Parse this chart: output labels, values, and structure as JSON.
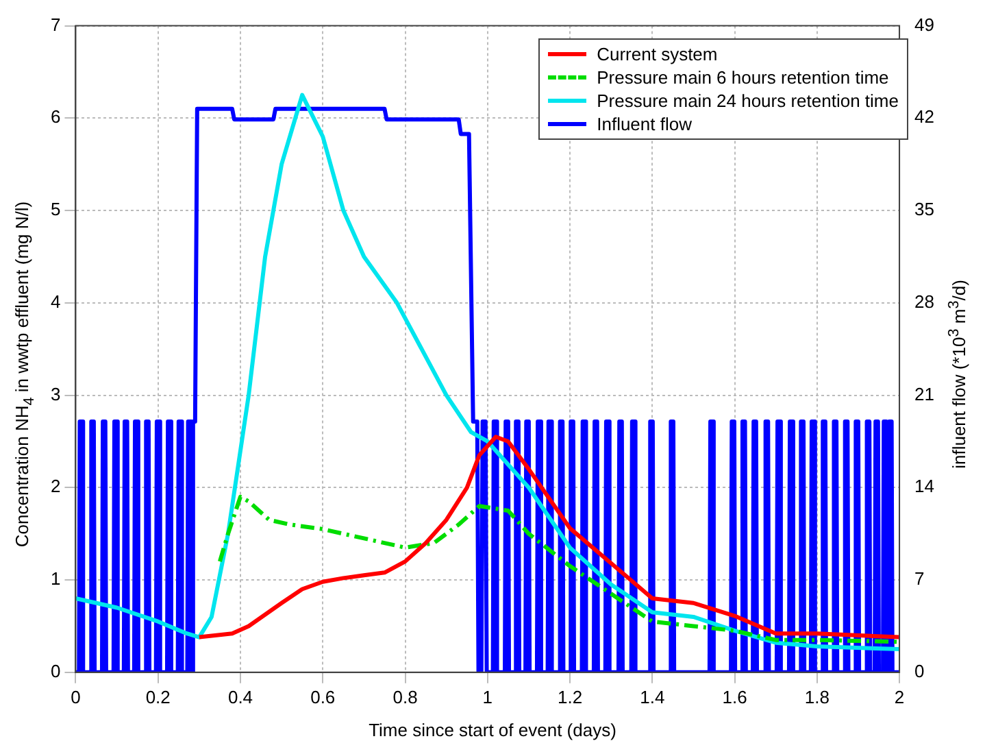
{
  "chart_data": {
    "type": "line",
    "xlabel": "Time since start of event (days)",
    "ylabel": "Concentration NH$_{4}$ in wwtp effluent (mg N/l)",
    "y2label": "influent flow (*10$^{3}$ m$^{3}$/d)",
    "xlim": [
      0,
      2
    ],
    "xticks": [
      0,
      0.2,
      0.4,
      0.6,
      0.8,
      1,
      1.2,
      1.4,
      1.6,
      1.8,
      2
    ],
    "ylim": [
      0,
      7
    ],
    "yticks": [
      0,
      1,
      2,
      3,
      4,
      5,
      6,
      7
    ],
    "y2lim": [
      0,
      49
    ],
    "y2ticks": [
      0,
      7,
      14,
      21,
      28,
      35,
      42,
      49
    ],
    "grid": true,
    "legend": "top right",
    "marker": "none",
    "series": [
      {
        "name": "Current system",
        "color": "#ff0000",
        "line_style": "solid",
        "x": [
          0.3,
          0.38,
          0.42,
          0.5,
          0.55,
          0.6,
          0.65,
          0.7,
          0.75,
          0.8,
          0.85,
          0.9,
          0.95,
          0.98,
          1.0,
          1.02,
          1.05,
          1.1,
          1.2,
          1.3,
          1.4,
          1.5,
          1.6,
          1.7,
          1.8,
          2.0
        ],
        "values": [
          0.38,
          0.42,
          0.5,
          0.75,
          0.9,
          0.98,
          1.02,
          1.05,
          1.08,
          1.2,
          1.4,
          1.65,
          2.0,
          2.35,
          2.45,
          2.55,
          2.5,
          2.2,
          1.56,
          1.18,
          0.8,
          0.75,
          0.61,
          0.42,
          0.42,
          0.38
        ]
      },
      {
        "name": "Pressure main 6 hours retention time",
        "color": "#00dd00",
        "line_style": "dashed",
        "x": [
          0.35,
          0.37,
          0.4,
          0.42,
          0.47,
          0.52,
          0.6,
          0.7,
          0.8,
          0.87,
          0.93,
          0.98,
          1.05,
          1.1,
          1.2,
          1.3,
          1.4,
          1.5,
          1.6,
          1.7,
          1.8,
          2.0
        ],
        "values": [
          1.2,
          1.5,
          1.9,
          1.85,
          1.65,
          1.6,
          1.55,
          1.45,
          1.35,
          1.4,
          1.6,
          1.8,
          1.75,
          1.5,
          1.15,
          0.85,
          0.55,
          0.5,
          0.45,
          0.35,
          0.35,
          0.33
        ]
      },
      {
        "name": "Pressure main 24 hours retention time",
        "color": "#00e5ee",
        "line_style": "solid",
        "x": [
          0,
          0.1,
          0.2,
          0.27,
          0.3,
          0.33,
          0.37,
          0.42,
          0.46,
          0.5,
          0.55,
          0.6,
          0.65,
          0.7,
          0.78,
          0.84,
          0.9,
          0.96,
          1.0,
          1.1,
          1.2,
          1.3,
          1.4,
          1.5,
          1.6,
          1.7,
          1.8,
          2.0
        ],
        "values": [
          0.8,
          0.7,
          0.55,
          0.42,
          0.38,
          0.6,
          1.5,
          3.0,
          4.5,
          5.5,
          6.25,
          5.8,
          5.0,
          4.5,
          4.0,
          3.5,
          3.0,
          2.6,
          2.5,
          2.0,
          1.35,
          0.95,
          0.65,
          0.6,
          0.45,
          0.32,
          0.28,
          0.25
        ]
      },
      {
        "name": "Influent flow",
        "color": "#0000ff",
        "line_style": "solid",
        "axis": "y2",
        "x": [
          0,
          0.008,
          0.01,
          0.016,
          0.018,
          0.036,
          0.038,
          0.044,
          0.046,
          0.064,
          0.066,
          0.072,
          0.074,
          0.092,
          0.094,
          0.1,
          0.102,
          0.117,
          0.119,
          0.125,
          0.127,
          0.142,
          0.144,
          0.15,
          0.152,
          0.169,
          0.171,
          0.177,
          0.179,
          0.195,
          0.197,
          0.203,
          0.205,
          0.222,
          0.224,
          0.23,
          0.232,
          0.248,
          0.25,
          0.256,
          0.258,
          0.271,
          0.273,
          0.279,
          0.281,
          0.283,
          0.285,
          0.29,
          0.295,
          0.38,
          0.385,
          0.48,
          0.485,
          0.75,
          0.755,
          0.93,
          0.935,
          0.955,
          0.965,
          0.975,
          0.978,
          0.985,
          0.988,
          0.995,
          0.998,
          1.013,
          1.015,
          1.021,
          1.023,
          1.042,
          1.044,
          1.05,
          1.052,
          1.067,
          1.069,
          1.075,
          1.077,
          1.092,
          1.094,
          1.1,
          1.102,
          1.12,
          1.122,
          1.128,
          1.13,
          1.146,
          1.148,
          1.154,
          1.156,
          1.174,
          1.176,
          1.182,
          1.184,
          1.2,
          1.202,
          1.208,
          1.21,
          1.229,
          1.231,
          1.237,
          1.239,
          1.258,
          1.26,
          1.266,
          1.268,
          1.286,
          1.288,
          1.294,
          1.296,
          1.318,
          1.32,
          1.326,
          1.328,
          1.349,
          1.351,
          1.357,
          1.359,
          1.393,
          1.395,
          1.401,
          1.403,
          1.443,
          1.445,
          1.451,
          1.453,
          1.539,
          1.541,
          1.547,
          1.549,
          1.591,
          1.593,
          1.599,
          1.601,
          1.617,
          1.619,
          1.625,
          1.627,
          1.644,
          1.646,
          1.652,
          1.654,
          1.673,
          1.675,
          1.681,
          1.683,
          1.702,
          1.704,
          1.71,
          1.712,
          1.732,
          1.734,
          1.74,
          1.742,
          1.759,
          1.761,
          1.767,
          1.769,
          1.785,
          1.787,
          1.793,
          1.795,
          1.812,
          1.814,
          1.82,
          1.822,
          1.839,
          1.841,
          1.847,
          1.849,
          1.866,
          1.868,
          1.874,
          1.876,
          1.892,
          1.894,
          1.9,
          1.902,
          1.919,
          1.921,
          1.927,
          1.929,
          1.94,
          1.942,
          1.948,
          1.95,
          1.96,
          1.962,
          1.968,
          1.97,
          1.973,
          1.975,
          1.981,
          1.983,
          2.0
        ],
        "values": [
          0,
          0,
          19,
          19,
          0,
          0,
          19,
          19,
          0,
          0,
          19,
          19,
          0,
          0,
          19,
          19,
          0,
          0,
          19,
          19,
          0,
          0,
          19,
          19,
          0,
          0,
          19,
          19,
          0,
          0,
          19,
          19,
          0,
          0,
          19,
          19,
          0,
          0,
          19,
          19,
          0,
          0,
          19,
          19,
          0,
          0,
          19,
          19,
          42.7,
          42.7,
          41.9,
          41.9,
          42.7,
          42.7,
          41.9,
          41.9,
          40.8,
          40.8,
          19,
          19,
          0,
          0,
          19,
          19,
          0,
          0,
          19,
          19,
          0,
          0,
          19,
          19,
          0,
          0,
          19,
          19,
          0,
          0,
          19,
          19,
          0,
          0,
          19,
          19,
          0,
          0,
          19,
          19,
          0,
          0,
          19,
          19,
          0,
          0,
          19,
          19,
          0,
          0,
          19,
          19,
          0,
          0,
          19,
          19,
          0,
          0,
          19,
          19,
          0,
          0,
          19,
          19,
          0,
          0,
          19,
          19,
          0,
          0,
          19,
          19,
          0,
          0,
          19,
          19,
          0,
          0,
          19,
          19,
          0,
          0,
          19,
          19,
          0,
          0,
          19,
          19,
          0,
          0,
          19,
          19,
          0,
          0,
          19,
          19,
          0,
          0,
          19,
          19,
          0,
          0,
          19,
          19,
          0,
          0,
          19,
          19,
          0,
          0,
          19,
          19,
          0,
          0,
          19,
          19,
          0,
          0,
          19,
          19,
          0,
          0,
          19,
          19,
          0,
          0,
          19,
          19,
          0,
          0,
          19,
          19,
          0,
          0,
          19,
          19,
          0,
          0,
          19,
          19,
          0,
          0,
          19,
          19,
          0,
          0
        ]
      }
    ]
  }
}
